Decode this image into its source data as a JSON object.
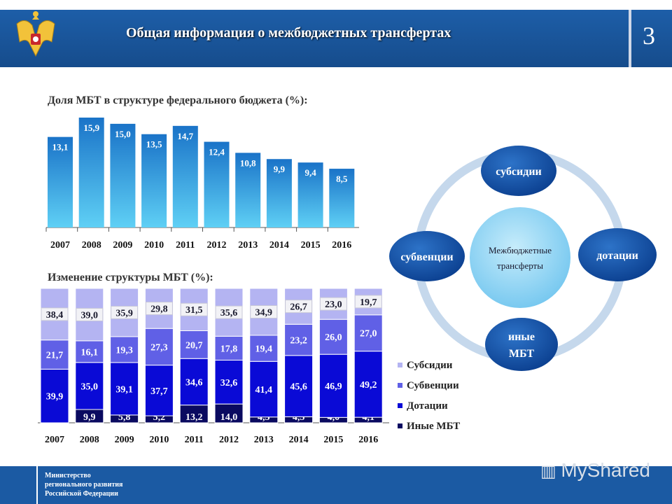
{
  "header": {
    "title": "Общая информация о межбюджетных трансфертах",
    "page_number": "3"
  },
  "footer": {
    "ministry_lines": [
      "Министерство",
      "регионального развития",
      "Российской Федерации"
    ],
    "watermark": "MyShared"
  },
  "diagram": {
    "center": "Межбюджетные трансферты",
    "nodes": {
      "top": "субсидии",
      "right": "дотации",
      "bottom": "иные МБТ",
      "left": "субвенции"
    }
  },
  "colors": {
    "header_blue": "#1d5ea8",
    "bar_top": "#1a73c8",
    "bar_bottom": "#5fd0f5",
    "subsidies": "#b4b4f2",
    "subventions": "#6060e6",
    "dotations": "#0a0ad6",
    "other": "#0a0a60"
  },
  "chart_data": [
    {
      "type": "bar",
      "title": "Доля МБТ в структуре федерального бюджета (%):",
      "categories": [
        "2007",
        "2008",
        "2009",
        "2010",
        "2011",
        "2012",
        "2013",
        "2014",
        "2015",
        "2016"
      ],
      "values": [
        13.1,
        15.9,
        15.0,
        13.5,
        14.7,
        12.4,
        10.8,
        9.9,
        9.4,
        8.5
      ],
      "value_labels": [
        "13,1",
        "15,9",
        "15,0",
        "13,5",
        "14,7",
        "12,4",
        "10,8",
        "9,9",
        "9,4",
        "8,5"
      ],
      "ylim": [
        0,
        16
      ],
      "xlabel": "",
      "ylabel": ""
    },
    {
      "type": "bar",
      "stacked": true,
      "title": "Изменение структуры МБТ (%):",
      "categories": [
        "2007",
        "2008",
        "2009",
        "2010",
        "2011",
        "2012",
        "2013",
        "2014",
        "2015",
        "2016"
      ],
      "legend_position": "right",
      "series": [
        {
          "name": "Иные МБТ",
          "values": [
            0,
            9.9,
            5.8,
            5.2,
            13.2,
            14.0,
            4.3,
            4.5,
            4.0,
            4.1
          ],
          "labels": [
            "",
            "9,9",
            "5,8",
            "5,2",
            "13,2",
            "14,0",
            "4,3",
            "4,5",
            "4,0",
            "4,1"
          ]
        },
        {
          "name": "Дотации",
          "values": [
            39.9,
            35.0,
            39.1,
            37.7,
            34.6,
            32.6,
            41.4,
            45.6,
            46.9,
            49.2
          ],
          "labels": [
            "39,9",
            "35,0",
            "39,1",
            "37,7",
            "34,6",
            "32,6",
            "41,4",
            "45,6",
            "46,9",
            "49,2"
          ]
        },
        {
          "name": "Субвенции",
          "values": [
            21.7,
            16.1,
            19.3,
            27.3,
            20.7,
            17.8,
            19.4,
            23.2,
            26.0,
            27.0
          ],
          "labels": [
            "21,7",
            "16,1",
            "19,3",
            "27,3",
            "20,7",
            "17,8",
            "19,4",
            "23,2",
            "26,0",
            "27,0"
          ]
        },
        {
          "name": "Субсидии",
          "values": [
            38.4,
            39.0,
            35.9,
            29.8,
            31.5,
            35.6,
            34.9,
            26.7,
            23.0,
            19.7
          ],
          "labels": [
            "38,4",
            "39,0",
            "35,9",
            "29,8",
            "31,5",
            "35,6",
            "34,9",
            "26,7",
            "23,0",
            "19,7"
          ]
        }
      ],
      "legend_order": [
        "Субсидии",
        "Субвенции",
        "Дотации",
        "Иные МБТ"
      ]
    }
  ]
}
